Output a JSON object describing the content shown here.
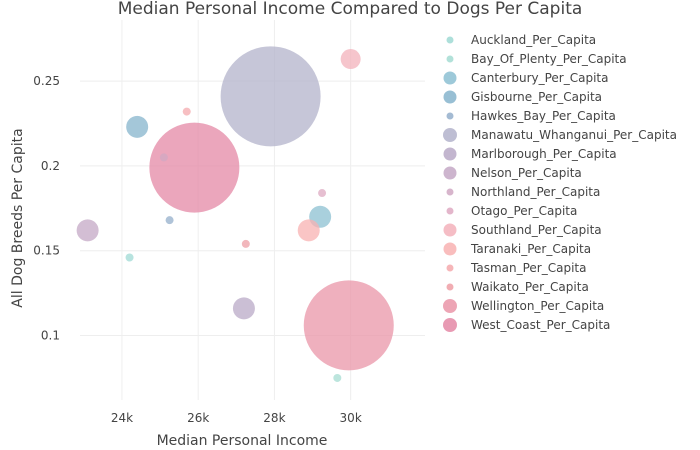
{
  "chart_data": {
    "type": "scatter",
    "title": "Median Personal Income Compared to Dogs Per Capita",
    "xlabel": "Median Personal Income",
    "ylabel": "All Dog Breeds Per Capita",
    "xlim": [
      22900,
      31950
    ],
    "ylim": [
      0.062,
      0.286
    ],
    "x_ticks": [
      24000,
      26000,
      28000,
      30000
    ],
    "x_tick_labels": [
      "24k",
      "26k",
      "28k",
      "30k"
    ],
    "y_ticks": [
      0.1,
      0.15,
      0.2,
      0.25
    ],
    "y_tick_labels": [
      "0.1",
      "0.15",
      "0.2",
      "0.25"
    ],
    "grid": true,
    "legend_position": "right",
    "series": [
      {
        "name": "Auckland_Per_Capita",
        "color": "#9fd9d4",
        "x": 24200,
        "y": 0.146,
        "size": 4
      },
      {
        "name": "Bay_Of_Plenty_Per_Capita",
        "color": "#a5dcd2",
        "x": 29650,
        "y": 0.075,
        "size": 4
      },
      {
        "name": "Canterbury_Per_Capita",
        "color": "#8cc0d2",
        "x": 29200,
        "y": 0.17,
        "size": 11
      },
      {
        "name": "Gisbourne_Per_Capita",
        "color": "#86b4cc",
        "x": 24400,
        "y": 0.223,
        "size": 11
      },
      {
        "name": "Hawkes_Bay_Per_Capita",
        "color": "#94afcb",
        "x": 25250,
        "y": 0.168,
        "size": 4
      },
      {
        "name": "Manawatu_Whanganui_Per_Capita",
        "color": "#b3b3cb",
        "x": 27900,
        "y": 0.241,
        "size": 50
      },
      {
        "name": "Marlborough_Per_Capita",
        "color": "#b9a9c7",
        "x": 27200,
        "y": 0.116,
        "size": 11
      },
      {
        "name": "Nelson_Per_Capita",
        "color": "#c4a8c5",
        "x": 23100,
        "y": 0.162,
        "size": 11
      },
      {
        "name": "Northland_Per_Capita",
        "color": "#d0a8c3",
        "x": 25100,
        "y": 0.205,
        "size": 4
      },
      {
        "name": "Otago_Per_Capita",
        "color": "#dea9c2",
        "x": 29250,
        "y": 0.184,
        "size": 4
      },
      {
        "name": "Southland_Per_Capita",
        "color": "#f3b2bb",
        "x": 30000,
        "y": 0.263,
        "size": 10
      },
      {
        "name": "Taranaki_Per_Capita",
        "color": "#f8b1b1",
        "x": 28900,
        "y": 0.162,
        "size": 11
      },
      {
        "name": "Tasman_Per_Capita",
        "color": "#f4a9ad",
        "x": 25700,
        "y": 0.232,
        "size": 4
      },
      {
        "name": "Waikato_Per_Capita",
        "color": "#ee9fa6",
        "x": 27250,
        "y": 0.154,
        "size": 4
      },
      {
        "name": "Wellington_Per_Capita",
        "color": "#ea95a8",
        "x": 29950,
        "y": 0.106,
        "size": 45
      },
      {
        "name": "West_Coast_Per_Capita",
        "color": "#e488a6",
        "x": 25900,
        "y": 0.199,
        "size": 45
      }
    ]
  }
}
